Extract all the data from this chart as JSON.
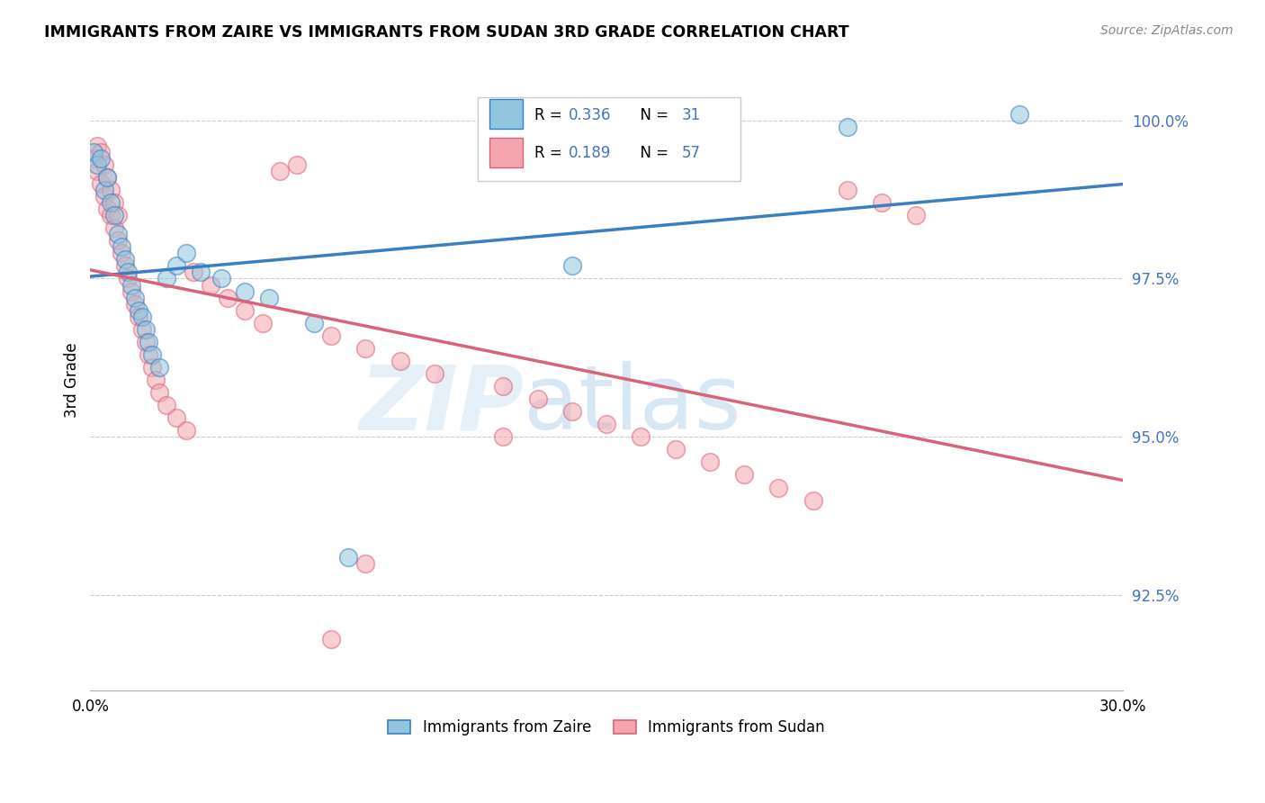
{
  "title": "IMMIGRANTS FROM ZAIRE VS IMMIGRANTS FROM SUDAN 3RD GRADE CORRELATION CHART",
  "source": "Source: ZipAtlas.com",
  "ylabel": "3rd Grade",
  "x_min": 0.0,
  "x_max": 0.3,
  "y_min": 91.0,
  "y_max": 100.8,
  "x_ticks": [
    0.0,
    0.05,
    0.1,
    0.15,
    0.2,
    0.25,
    0.3
  ],
  "x_tick_labels": [
    "0.0%",
    "",
    "",
    "",
    "",
    "",
    "30.0%"
  ],
  "y_ticks": [
    92.5,
    95.0,
    97.5,
    100.0
  ],
  "y_tick_labels": [
    "92.5%",
    "95.0%",
    "97.5%",
    "100.0%"
  ],
  "legend_R_zaire": "0.336",
  "legend_N_zaire": "31",
  "legend_R_sudan": "0.189",
  "legend_N_sudan": "57",
  "zaire_color": "#92c5de",
  "sudan_color": "#f4a6b0",
  "line_zaire_color": "#3a7fc1",
  "line_sudan_color": "#d9637a",
  "tick_color": "#4472C4",
  "zaire_x": [
    0.001,
    0.002,
    0.003,
    0.004,
    0.005,
    0.006,
    0.007,
    0.008,
    0.009,
    0.01,
    0.011,
    0.012,
    0.013,
    0.014,
    0.015,
    0.016,
    0.017,
    0.018,
    0.02,
    0.022,
    0.025,
    0.028,
    0.032,
    0.038,
    0.045,
    0.052,
    0.065,
    0.075,
    0.14,
    0.22,
    0.27
  ],
  "zaire_y": [
    99.5,
    99.3,
    99.4,
    98.9,
    99.1,
    98.7,
    98.5,
    98.2,
    98.0,
    97.8,
    97.6,
    97.4,
    97.2,
    97.0,
    96.9,
    96.7,
    96.5,
    96.3,
    96.1,
    97.5,
    97.7,
    97.9,
    97.6,
    97.5,
    97.3,
    97.2,
    96.8,
    93.1,
    97.7,
    99.9,
    100.1
  ],
  "sudan_x": [
    0.001,
    0.002,
    0.003,
    0.004,
    0.005,
    0.006,
    0.007,
    0.008,
    0.009,
    0.01,
    0.011,
    0.012,
    0.013,
    0.014,
    0.015,
    0.016,
    0.017,
    0.018,
    0.019,
    0.02,
    0.022,
    0.025,
    0.028,
    0.03,
    0.035,
    0.04,
    0.045,
    0.05,
    0.055,
    0.06,
    0.07,
    0.08,
    0.09,
    0.1,
    0.12,
    0.13,
    0.14,
    0.15,
    0.16,
    0.17,
    0.18,
    0.19,
    0.2,
    0.21,
    0.22,
    0.23,
    0.24,
    0.002,
    0.003,
    0.004,
    0.005,
    0.006,
    0.007,
    0.008,
    0.08,
    0.12,
    0.07
  ],
  "sudan_y": [
    99.4,
    99.2,
    99.0,
    98.8,
    98.6,
    98.5,
    98.3,
    98.1,
    97.9,
    97.7,
    97.5,
    97.3,
    97.1,
    96.9,
    96.7,
    96.5,
    96.3,
    96.1,
    95.9,
    95.7,
    95.5,
    95.3,
    95.1,
    97.6,
    97.4,
    97.2,
    97.0,
    96.8,
    99.2,
    99.3,
    96.6,
    96.4,
    96.2,
    96.0,
    95.8,
    95.6,
    95.4,
    95.2,
    95.0,
    94.8,
    94.6,
    94.4,
    94.2,
    94.0,
    98.9,
    98.7,
    98.5,
    99.6,
    99.5,
    99.3,
    99.1,
    98.9,
    98.7,
    98.5,
    93.0,
    95.0,
    91.8
  ]
}
